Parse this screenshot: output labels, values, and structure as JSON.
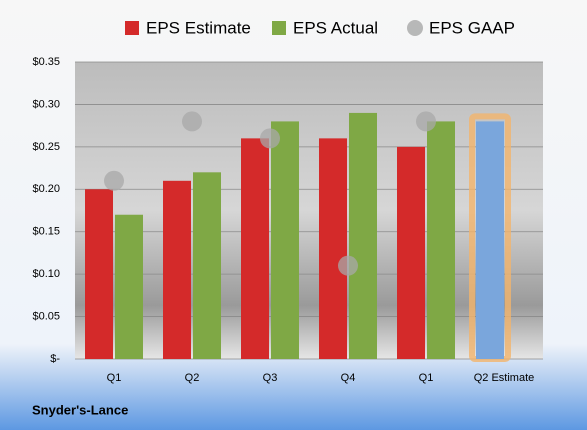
{
  "chart_data": {
    "type": "bar",
    "categories": [
      "Q1",
      "Q2",
      "Q3",
      "Q4",
      "Q1",
      "Q2 Estimate"
    ],
    "series": [
      {
        "name": "EPS Estimate",
        "color": "#d42a2a",
        "values": [
          0.2,
          0.21,
          0.26,
          0.26,
          0.25,
          0.28
        ]
      },
      {
        "name": "EPS Actual",
        "color": "#7fa845",
        "values": [
          0.17,
          0.22,
          0.28,
          0.29,
          0.28,
          null
        ]
      },
      {
        "name": "EPS GAAP",
        "color": "#a8a8a8",
        "marker": "circle",
        "values": [
          0.21,
          0.28,
          0.26,
          0.11,
          0.28,
          null
        ]
      }
    ],
    "highlight": {
      "index": 5,
      "color": "#7aa6dc",
      "glow": "#f3b46c"
    },
    "ylim": [
      0,
      0.35
    ],
    "yticks": [
      {
        "value": 0,
        "label": "$-"
      },
      {
        "value": 0.05,
        "label": "$0.05"
      },
      {
        "value": 0.1,
        "label": "$0.10"
      },
      {
        "value": 0.15,
        "label": "$0.15"
      },
      {
        "value": 0.2,
        "label": "$0.20"
      },
      {
        "value": 0.25,
        "label": "$0.25"
      },
      {
        "value": 0.3,
        "label": "$0.30"
      },
      {
        "value": 0.35,
        "label": "$0.35"
      }
    ],
    "grid": true,
    "footer": "Snyder's-Lance"
  }
}
